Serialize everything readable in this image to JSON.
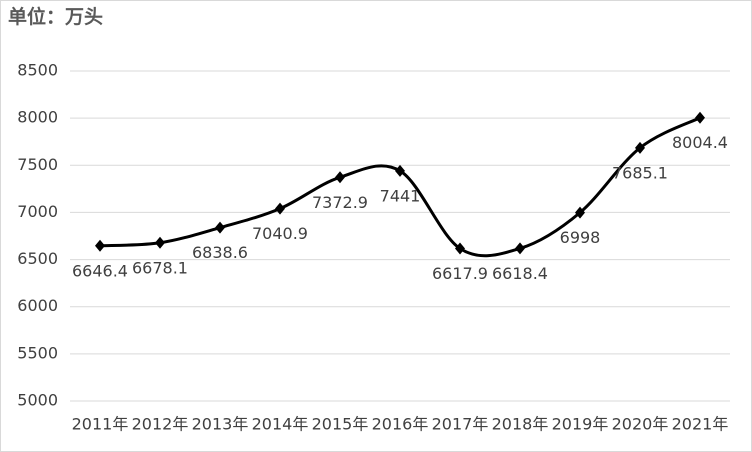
{
  "chart_data": {
    "type": "line",
    "title": "单位：万头",
    "categories": [
      "2011年",
      "2012年",
      "2013年",
      "2014年",
      "2015年",
      "2016年",
      "2017年",
      "2018年",
      "2019年",
      "2020年",
      "2021年"
    ],
    "values": [
      6646.4,
      6678.1,
      6838.6,
      7040.9,
      7372.9,
      7441,
      6617.9,
      6618.4,
      6998,
      7685.1,
      8004.4
    ],
    "color": "#000000",
    "smooth": true,
    "marker": "diamond",
    "ylim": [
      5000,
      8500
    ],
    "yticks": [
      5000,
      5500,
      6000,
      6500,
      7000,
      7500,
      8000,
      8500
    ],
    "grid": true
  }
}
